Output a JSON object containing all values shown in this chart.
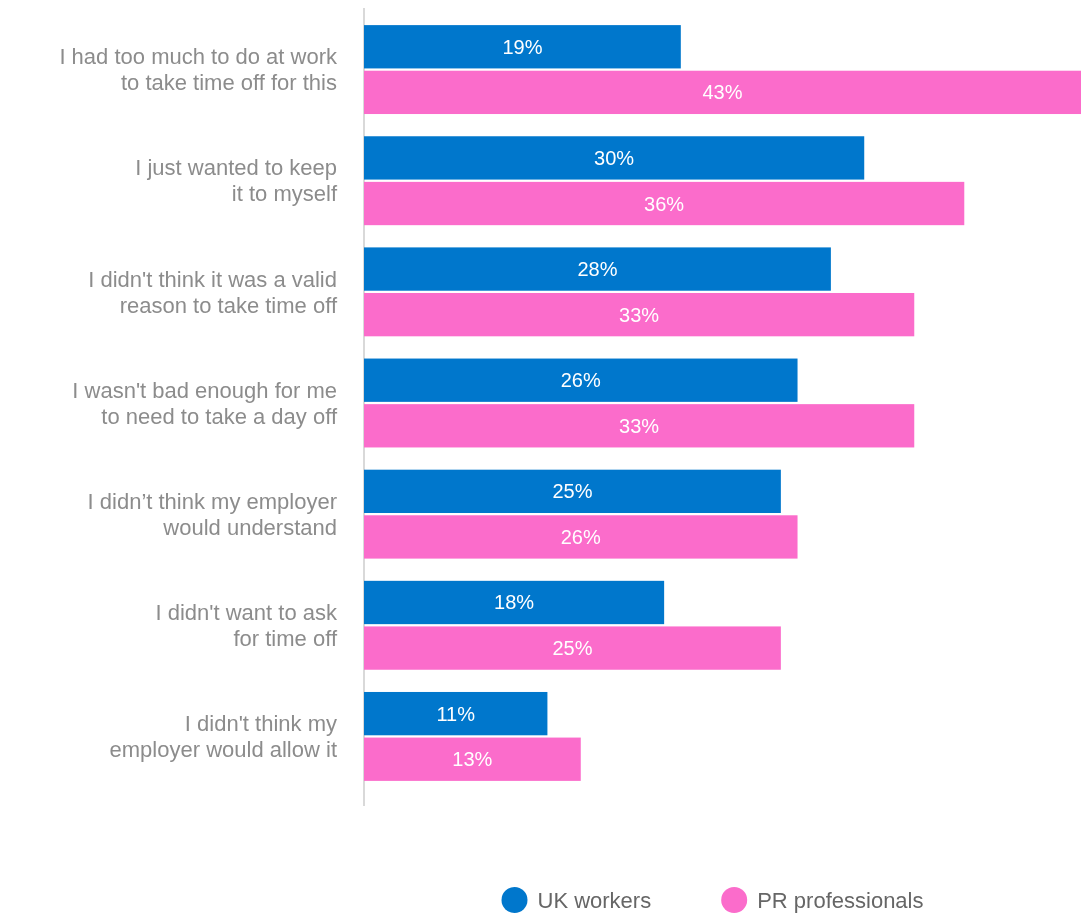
{
  "chart_data": {
    "type": "bar",
    "orientation": "horizontal",
    "categories": [
      "I had too much to do at work\nto take time off for this",
      "I just wanted to keep\nit to myself",
      "I didn't think it was a valid\nreason to take time off",
      "I wasn't bad enough for me\nto need to take a day off",
      "I didn’t think my employer\nwould understand",
      "I didn't want to ask\nfor time off",
      "I didn't think my\nemployer would allow it"
    ],
    "series": [
      {
        "name": "UK workers",
        "color": "#0077cc",
        "values": [
          19,
          30,
          28,
          26,
          25,
          18,
          11
        ],
        "value_labels": [
          "19%",
          "30%",
          "28%",
          "26%",
          "25%",
          "18%",
          "11%"
        ]
      },
      {
        "name": "PR professionals",
        "color": "#fb6ccb",
        "values": [
          43,
          36,
          33,
          33,
          26,
          25,
          13
        ],
        "value_labels": [
          "43%",
          "36%",
          "33%",
          "33%",
          "26%",
          "25%",
          "13%"
        ]
      }
    ],
    "legend": "bottom",
    "tick_labels": "y"
  }
}
